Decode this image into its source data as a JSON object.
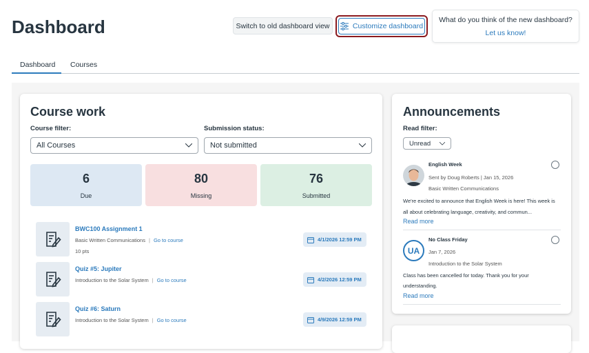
{
  "header": {
    "title": "Dashboard",
    "old_view_button": "Switch to old dashboard view",
    "customize_button": "Customize dashboard",
    "feedback_question": "What do you think of the new dashboard?",
    "feedback_link": "Let us know!"
  },
  "tabs": [
    "Dashboard",
    "Courses"
  ],
  "course_work": {
    "title": "Course work",
    "course_filter_label": "Course filter:",
    "course_filter_value": "All Courses",
    "status_label": "Submission status:",
    "status_value": "Not submitted",
    "stats": [
      {
        "value": 6,
        "label": "Due"
      },
      {
        "value": 80,
        "label": "Missing"
      },
      {
        "value": 76,
        "label": "Submitted"
      }
    ],
    "items": [
      {
        "title": "BWC100 Assignment 1",
        "course": "Basic Written Communications",
        "link": "Go to course",
        "points": "10 pts",
        "due": "4/1/2026 12:59 PM"
      },
      {
        "title": "Quiz #5: Jupiter",
        "course": "Introduction to the Solar System",
        "link": "Go to course",
        "due": "4/2/2026 12:59 PM"
      },
      {
        "title": "Quiz #6: Saturn",
        "course": "Introduction to the Solar System",
        "link": "Go to course",
        "due": "4/9/2026 12:59 PM"
      }
    ]
  },
  "announcements": {
    "title": "Announcements",
    "filter_label": "Read filter:",
    "filter_value": "Unread",
    "items": [
      {
        "title": "English Week",
        "meta": "Sent by Doug Roberts | Jan 15, 2026",
        "course": "Basic Written Communications",
        "body": "We're excited to announce that English Week is here! This week is all about celebrating language, creativity, and commun...",
        "link": "Read more"
      },
      {
        "avatar": "UA",
        "title": "No Class Friday",
        "meta": "Jan 7, 2026",
        "course": "Introduction to the Solar System",
        "body": "Class has been cancelled for today. Thank you for your understanding.",
        "link": "Read more"
      }
    ]
  }
}
